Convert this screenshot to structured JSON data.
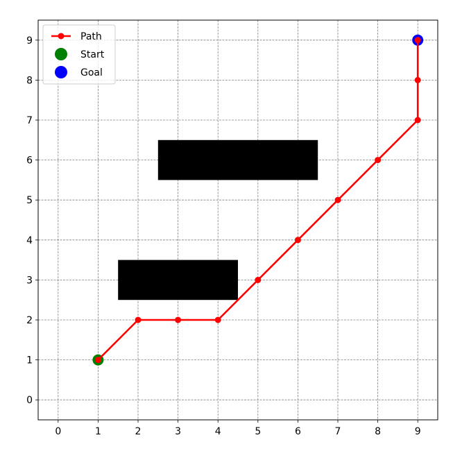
{
  "chart_data": {
    "type": "scatter",
    "title": "",
    "xlabel": "",
    "ylabel": "",
    "xlim": [
      -0.5,
      9.5
    ],
    "ylim": [
      -0.5,
      9.5
    ],
    "xticks": [
      "0",
      "1",
      "2",
      "3",
      "4",
      "5",
      "6",
      "7",
      "8",
      "9"
    ],
    "yticks": [
      "0",
      "1",
      "2",
      "3",
      "4",
      "5",
      "6",
      "7",
      "8",
      "9"
    ],
    "grid": true,
    "legend_position": "top-left",
    "obstacles": [
      {
        "x": [
          2.5,
          6.5
        ],
        "y": [
          5.5,
          6.5
        ],
        "color": "#000000"
      },
      {
        "x": [
          1.5,
          4.5
        ],
        "y": [
          2.5,
          3.5
        ],
        "color": "#000000"
      }
    ],
    "series": [
      {
        "name": "Path",
        "kind": "line-markers",
        "color": "#ff0000",
        "x": [
          1,
          2,
          3,
          4,
          5,
          6,
          7,
          8,
          9,
          9,
          9
        ],
        "y": [
          1,
          2,
          2,
          2,
          3,
          4,
          5,
          6,
          7,
          8,
          9
        ]
      },
      {
        "name": "Start",
        "kind": "point",
        "color": "#008000",
        "x": [
          1
        ],
        "y": [
          1
        ]
      },
      {
        "name": "Goal",
        "kind": "point",
        "color": "#0000ff",
        "x": [
          9
        ],
        "y": [
          9
        ]
      }
    ]
  }
}
